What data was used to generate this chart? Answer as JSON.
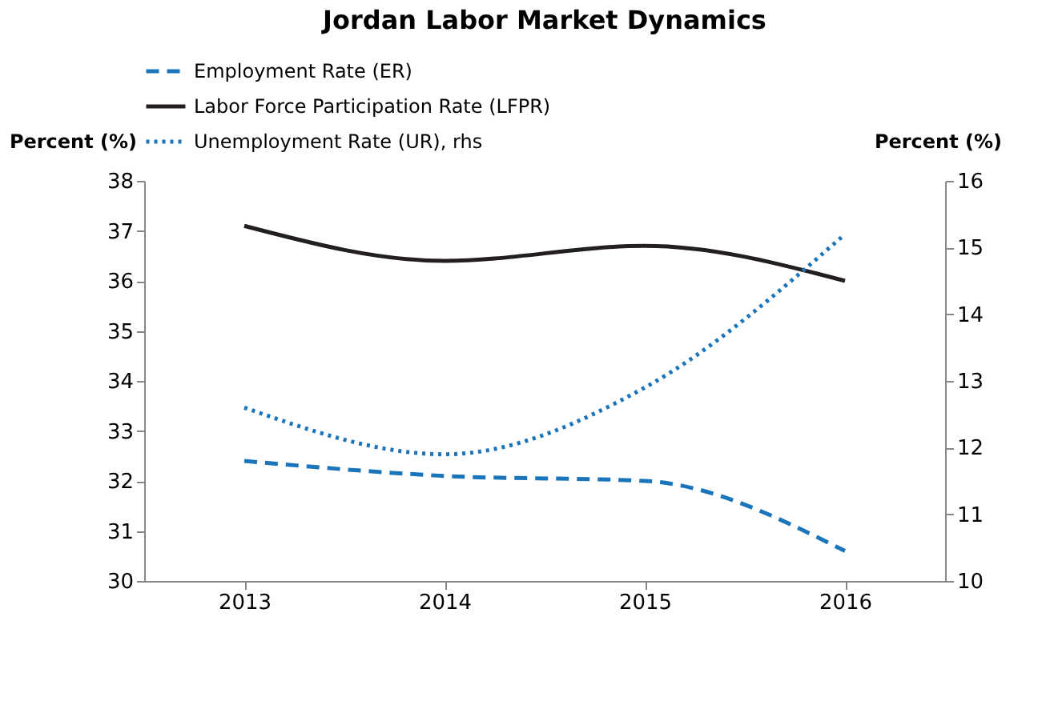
{
  "chart_data": {
    "type": "line",
    "title": "Jordan Labor Market Dynamics",
    "categories": [
      "2013",
      "2014",
      "2015",
      "2016"
    ],
    "ylabel": "Percent (%)",
    "y2label": "Percent (%)",
    "ylim": [
      30,
      38
    ],
    "yticks": [
      30,
      31,
      32,
      33,
      34,
      35,
      36,
      37,
      38
    ],
    "y2lim": [
      10,
      16
    ],
    "y2ticks": [
      10,
      11,
      12,
      13,
      14,
      15,
      16
    ],
    "legend": "top",
    "grid": false,
    "marker": "none",
    "series": [
      {
        "name": "Employment Rate (ER)",
        "color": "#1b75bb",
        "line_style": "dashed",
        "values": [
          32.4,
          32.1,
          32.0,
          30.6
        ]
      },
      {
        "name": "Labor Force Participation Rate (LFPR)",
        "color": "#231f20",
        "line_style": "solid",
        "values": [
          37.1,
          36.4,
          36.7,
          36.0
        ]
      },
      {
        "name": "Unemployment Rate (UR), rhs",
        "color": "#1b75bb",
        "line_style": "dotted",
        "axis": "y2",
        "values": [
          12.6,
          11.9,
          12.9,
          15.2
        ]
      }
    ]
  }
}
